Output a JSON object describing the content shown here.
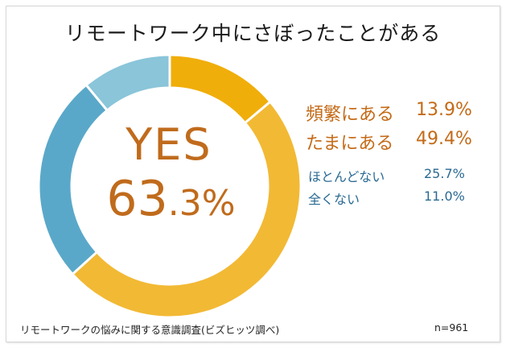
{
  "title": "リモートワーク中にさぼったことがある",
  "center": {
    "line1": "YES",
    "line2_big": "63",
    "line2_small": ".3%"
  },
  "legend": [
    {
      "label": "頻繁にある",
      "value": "13.9%"
    },
    {
      "label": "たまにある",
      "value": "49.4%"
    },
    {
      "label": "ほとんどない",
      "value": "25.7%"
    },
    {
      "label": "全くない",
      "value": "11.0%"
    }
  ],
  "footer": {
    "source": "リモートワークの悩みに関する意識調査(ビズヒッツ調べ)",
    "n": "n=961"
  },
  "colors": {
    "often": "#f0ae0a",
    "sometimes": "#f2b934",
    "rarely": "#5aa8c9",
    "never": "#8ac5d9",
    "accent_text": "#c06b1c",
    "blue_text": "#2a6a93"
  },
  "chart_data": {
    "type": "pie",
    "title": "リモートワーク中にさぼったことがある",
    "categories": [
      "頻繁にある",
      "たまにある",
      "ほとんどない",
      "全くない"
    ],
    "values": [
      13.9,
      49.4,
      25.7,
      11.0
    ],
    "colors": [
      "#f0ae0a",
      "#f2b934",
      "#5aa8c9",
      "#8ac5d9"
    ],
    "donut": true,
    "center_label": "YES 63.3%",
    "legend_position": "right",
    "sample_size": "n=961"
  }
}
